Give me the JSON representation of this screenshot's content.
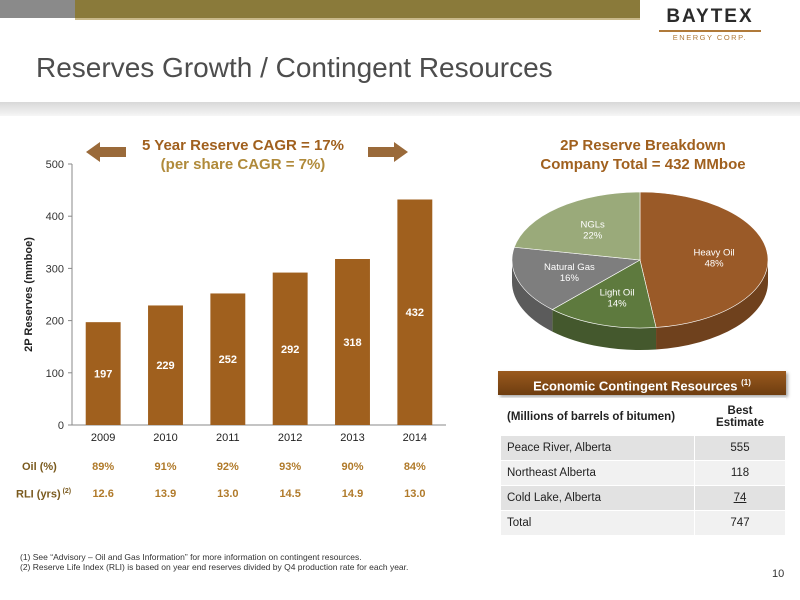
{
  "logo": {
    "name": "BAYTEX",
    "sub": "ENERGY CORP."
  },
  "title": "Reserves Growth / Contingent Resources",
  "cagr": {
    "line1": "5 Year Reserve CAGR = 17%",
    "line2": "(per share CAGR = 7%)"
  },
  "colors": {
    "bar": "#a0601e",
    "accent": "#a0601e",
    "heavy_oil": "#9a5a28",
    "light_oil": "#5e7a3e",
    "natural_gas": "#7e7e7e",
    "ngls": "#9aaa7a"
  },
  "chart_data": [
    {
      "type": "bar",
      "categories": [
        "2009",
        "2010",
        "2011",
        "2012",
        "2013",
        "2014"
      ],
      "values": [
        197,
        229,
        252,
        292,
        318,
        432
      ],
      "value_labels": [
        "197",
        "229",
        "252",
        "292",
        "318",
        "432"
      ],
      "ylabel": "2P Reserves (mmboe)",
      "ylim": [
        0,
        500
      ],
      "yticks": [
        "0",
        "100",
        "200",
        "300",
        "400",
        "500"
      ],
      "ytick_values": [
        0,
        100,
        200,
        300,
        400,
        500
      ],
      "grid": false,
      "rows": [
        {
          "label": "Oil (%)",
          "values": [
            "89%",
            "91%",
            "92%",
            "93%",
            "90%",
            "84%"
          ]
        },
        {
          "label": "RLI (yrs)",
          "sup": "(2)",
          "values": [
            "12.6",
            "13.9",
            "13.0",
            "14.5",
            "14.9",
            "13.0"
          ]
        }
      ]
    },
    {
      "type": "pie",
      "title_line1": "2P Reserve Breakdown",
      "title_line2": "Company Total = 432 MMboe",
      "slices": [
        {
          "label": "Heavy Oil",
          "value": 48,
          "value_label": "48%",
          "color": "#9a5a28"
        },
        {
          "label": "Light Oil",
          "value": 14,
          "value_label": "14%",
          "color": "#5e7a3e"
        },
        {
          "label": "Natural Gas",
          "value": 16,
          "value_label": "16%",
          "color": "#7e7e7e"
        },
        {
          "label": "NGLs",
          "value": 22,
          "value_label": "22%",
          "color": "#9aaa7a"
        }
      ]
    }
  ],
  "contingent": {
    "title": "Economic Contingent Resources",
    "title_sup": "(1)",
    "col1": "(Millions of barrels of bitumen)",
    "col2_line1": "Best",
    "col2_line2": "Estimate",
    "rows": [
      {
        "name": "Peace River, Alberta",
        "value": "555"
      },
      {
        "name": "Northeast Alberta",
        "value": "118"
      },
      {
        "name": "Cold Lake, Alberta",
        "value": "74"
      },
      {
        "name": "Total",
        "value": "747"
      }
    ]
  },
  "footnotes": [
    "(1)    See “Advisory – Oil and Gas Information” for more information on contingent resources.",
    "(2)    Reserve Life Index (RLI) is based on year end reserves divided by Q4 production rate for each year."
  ],
  "page_number": "10"
}
